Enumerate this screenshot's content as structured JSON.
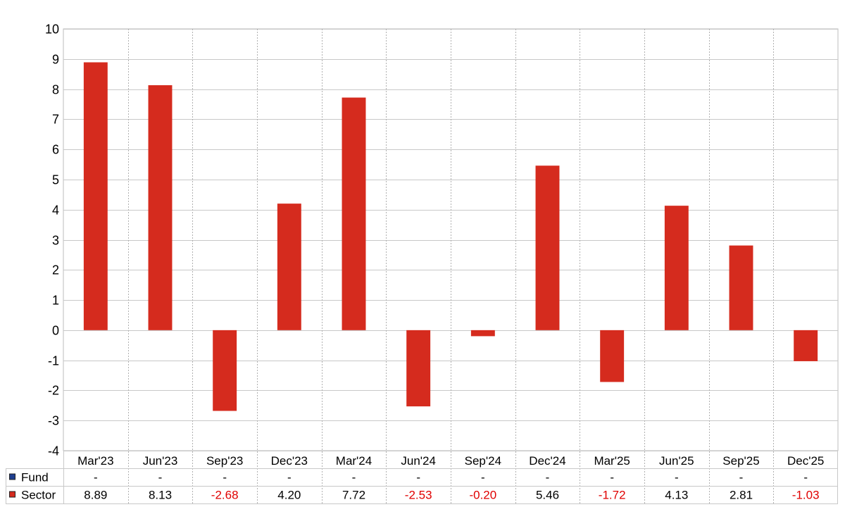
{
  "chart_data": {
    "type": "bar",
    "categories": [
      "Mar'23",
      "Jun'23",
      "Sep'23",
      "Dec'23",
      "Mar'24",
      "Jun'24",
      "Sep'24",
      "Dec'24",
      "Mar'25",
      "Jun'25",
      "Sep'25",
      "Dec'25"
    ],
    "series": [
      {
        "name": "Fund",
        "values": [
          null,
          null,
          null,
          null,
          null,
          null,
          null,
          null,
          null,
          null,
          null,
          null
        ],
        "display": [
          "-",
          "-",
          "-",
          "-",
          "-",
          "-",
          "-",
          "-",
          "-",
          "-",
          "-",
          "-"
        ],
        "color": "#1f3f8f"
      },
      {
        "name": "Sector",
        "values": [
          8.89,
          8.13,
          -2.68,
          4.2,
          7.72,
          -2.53,
          -0.2,
          5.46,
          -1.72,
          4.13,
          2.81,
          -1.03
        ],
        "display": [
          "8.89",
          "8.13",
          "-2.68",
          "4.20",
          "7.72",
          "-2.53",
          "-0.20",
          "5.46",
          "-1.72",
          "4.13",
          "2.81",
          "-1.03"
        ],
        "color": "#d52b1e"
      }
    ],
    "ylim": [
      -4,
      10
    ],
    "yticks": [
      "10",
      "9",
      "8",
      "7",
      "6",
      "5",
      "4",
      "3",
      "2",
      "1",
      "0",
      "-1",
      "-2",
      "-3",
      "-4"
    ],
    "title": "",
    "xlabel": "",
    "ylabel": "",
    "grid": true,
    "legend": "bottom-left table",
    "negative_color": "#e00000"
  }
}
